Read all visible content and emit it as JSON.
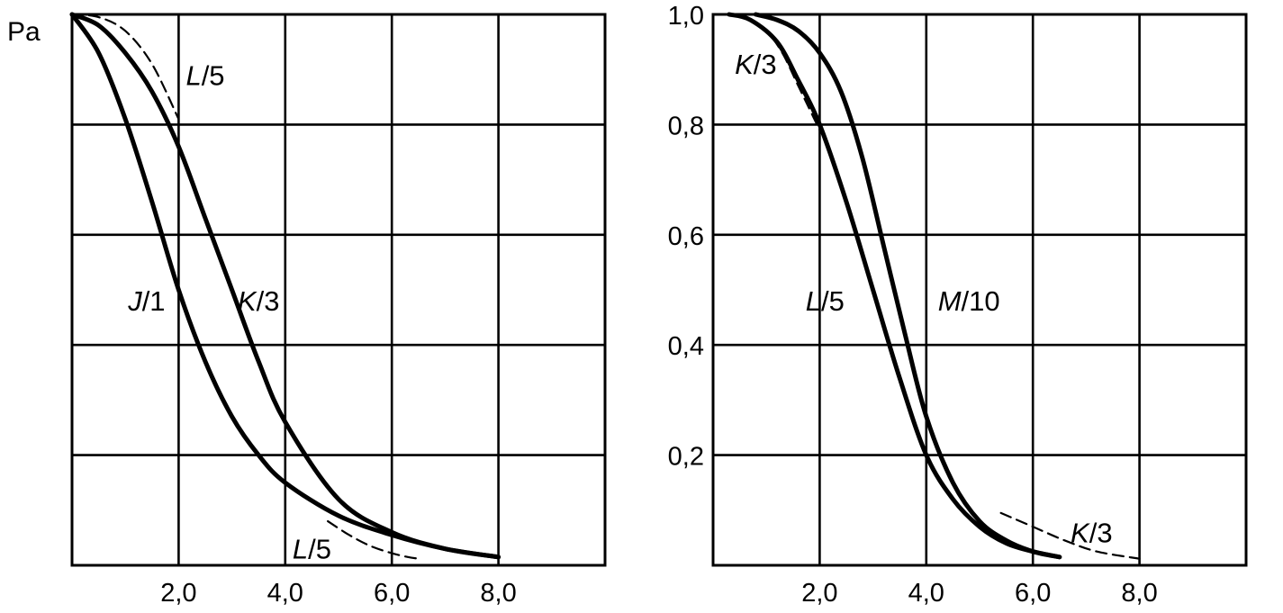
{
  "y_axis_title": "Pa",
  "colors": {
    "line": "#000000",
    "background": "#ffffff"
  },
  "chart_data": [
    {
      "type": "line",
      "title": "",
      "xlabel": "",
      "ylabel": "Pa",
      "xlim": [
        0,
        10
      ],
      "ylim": [
        0,
        1.0
      ],
      "grid": true,
      "x_ticks": [
        2,
        4,
        6,
        8
      ],
      "x_tick_labels": [
        "2,0",
        "4,0",
        "6,0",
        "8,0"
      ],
      "y_ticks": [],
      "y_tick_labels": [],
      "series": [
        {
          "name": "J/1",
          "style": "solid",
          "x": [
            0,
            0.5,
            1,
            1.5,
            2,
            2.5,
            3,
            3.5,
            4,
            5,
            6,
            7,
            8
          ],
          "y": [
            1.0,
            0.93,
            0.81,
            0.66,
            0.5,
            0.37,
            0.27,
            0.2,
            0.15,
            0.09,
            0.055,
            0.03,
            0.015
          ]
        },
        {
          "name": "K/3",
          "style": "solid",
          "x": [
            0,
            0.5,
            1,
            1.5,
            2,
            2.5,
            3,
            3.5,
            4,
            5,
            6,
            7,
            8
          ],
          "y": [
            1.0,
            0.98,
            0.93,
            0.86,
            0.76,
            0.63,
            0.5,
            0.37,
            0.26,
            0.12,
            0.06,
            0.03,
            0.015
          ]
        },
        {
          "name": "L/5",
          "style": "dashed",
          "x": [
            0,
            0.5,
            1,
            1.5,
            2
          ],
          "y": [
            1.0,
            0.995,
            0.97,
            0.91,
            0.81
          ]
        },
        {
          "name": "L/5",
          "style": "dashed",
          "x": [
            4.8,
            5.2,
            5.6,
            6.0,
            6.3,
            6.5
          ],
          "y": [
            0.08,
            0.055,
            0.035,
            0.022,
            0.015,
            0.012
          ]
        }
      ],
      "annotations": [
        {
          "text": "L/5",
          "x": 2.5,
          "y": 0.89
        },
        {
          "text": "J/1",
          "x": 1.4,
          "y": 0.48
        },
        {
          "text": "K/3",
          "x": 3.5,
          "y": 0.48
        },
        {
          "text": "L/5",
          "x": 4.5,
          "y": 0.03
        }
      ]
    },
    {
      "type": "line",
      "title": "",
      "xlabel": "",
      "ylabel": "",
      "xlim": [
        0,
        10
      ],
      "ylim": [
        0,
        1.0
      ],
      "grid": true,
      "x_ticks": [
        2,
        4,
        6,
        8
      ],
      "x_tick_labels": [
        "2,0",
        "4,0",
        "6,0",
        "8,0"
      ],
      "y_ticks": [
        0.2,
        0.4,
        0.6,
        0.8,
        1.0
      ],
      "y_tick_labels": [
        "0,2",
        "0,4",
        "0,6",
        "0,8",
        "1,0"
      ],
      "series": [
        {
          "name": "L/5",
          "style": "solid",
          "x": [
            0.3,
            0.7,
            1.2,
            1.6,
            2,
            2.5,
            3,
            3.5,
            4,
            4.5,
            5,
            5.5,
            6,
            6.5
          ],
          "y": [
            1.0,
            0.99,
            0.95,
            0.88,
            0.8,
            0.66,
            0.5,
            0.34,
            0.2,
            0.12,
            0.07,
            0.04,
            0.025,
            0.015
          ]
        },
        {
          "name": "M/10",
          "style": "solid",
          "x": [
            0.8,
            1.2,
            1.6,
            2,
            2.4,
            2.8,
            3.2,
            3.6,
            4,
            4.5,
            5,
            5.5,
            6,
            6.5
          ],
          "y": [
            1.0,
            0.99,
            0.97,
            0.93,
            0.86,
            0.74,
            0.58,
            0.42,
            0.27,
            0.15,
            0.08,
            0.045,
            0.025,
            0.015
          ]
        },
        {
          "name": "K/3",
          "style": "dashed",
          "x": [
            0.3,
            0.7,
            1.0,
            1.3,
            1.6,
            1.8,
            2.0
          ],
          "y": [
            1.0,
            0.99,
            0.97,
            0.93,
            0.87,
            0.83,
            0.79
          ]
        },
        {
          "name": "K/3",
          "style": "dashed",
          "x": [
            5.4,
            6.0,
            6.6,
            7.2,
            8.0
          ],
          "y": [
            0.095,
            0.07,
            0.045,
            0.025,
            0.012
          ]
        }
      ],
      "annotations": [
        {
          "text": "K/3",
          "x": 0.8,
          "y": 0.91
        },
        {
          "text": "L/5",
          "x": 2.1,
          "y": 0.48
        },
        {
          "text": "M/10",
          "x": 4.8,
          "y": 0.48
        },
        {
          "text": "K/3",
          "x": 7.1,
          "y": 0.06
        }
      ]
    }
  ]
}
